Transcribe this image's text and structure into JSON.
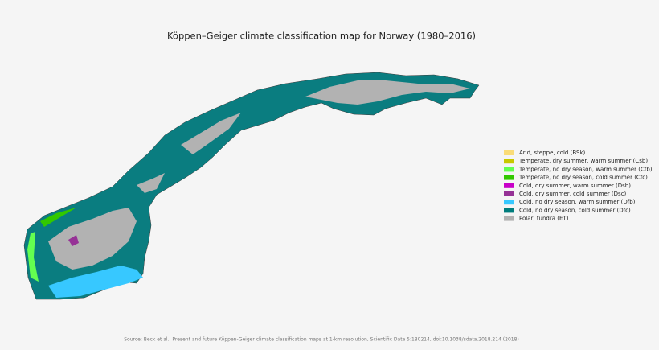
{
  "title": "Köppen–Geiger climate classification map for Norway (1980–2016)",
  "legend": [
    {
      "label": "Arid, steppe, cold (BSk)",
      "color": "#fadc78"
    },
    {
      "label": "Temperate, dry summer, warm summer (Csb)",
      "color": "#c8c800"
    },
    {
      "label": "Temperate, no dry season, warm summer (Cfb)",
      "color": "#64ff50"
    },
    {
      "label": "Temperate, no dry season, cold summer (Cfc)",
      "color": "#32c800"
    },
    {
      "label": "Cold, dry summer, warm summer (Dsb)",
      "color": "#c800c8"
    },
    {
      "label": "Cold, dry summer, cold summer (Dsc)",
      "color": "#963296"
    },
    {
      "label": "Cold, no dry season, warm summer (Dfb)",
      "color": "#37c8ff"
    },
    {
      "label": "Cold, no dry season, cold summer (Dfc)",
      "color": "#007d7d"
    },
    {
      "label": "Polar, tundra (ET)",
      "color": "#b2b2b2"
    }
  ],
  "source": "Source: Beck et al.: Present and future Köppen-Geiger climate classification maps at 1-km resolution, Scientific Data 5:180214, doi:10.1038/sdata.2018.214 (2018)"
}
